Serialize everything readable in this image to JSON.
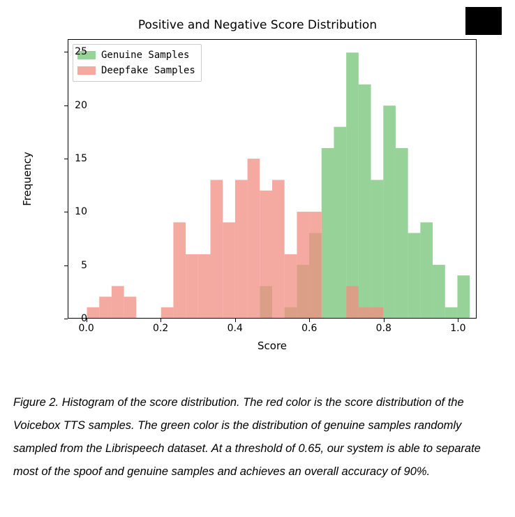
{
  "chart": {
    "type": "histogram",
    "title": "Positive and Negative Score Distribution",
    "xlabel": "Score",
    "ylabel": "Frequency",
    "xlim": [
      -0.05,
      1.05
    ],
    "ylim": [
      0,
      26.2
    ],
    "ytick_step": 5,
    "xtick_step": 0.2,
    "background_color": "#ffffff",
    "title_fontsize": 17,
    "label_fontsize": 15,
    "tick_fontsize": 14,
    "bin_width": 0.033333,
    "x_start": 0.0,
    "series": [
      {
        "name": "Genuine Samples",
        "color": "#74c476",
        "opacity": 0.75,
        "values": [
          0,
          0,
          0,
          0,
          0,
          0,
          0,
          0,
          0,
          0,
          0,
          0,
          0,
          0,
          3,
          0,
          1,
          5,
          8,
          16,
          18,
          25,
          22,
          13,
          20,
          16,
          8,
          9,
          5,
          1,
          4
        ]
      },
      {
        "name": "Deepfake Samples",
        "color": "#f28e82",
        "opacity": 0.75,
        "values": [
          1,
          2,
          3,
          2,
          0,
          0,
          1,
          9,
          6,
          6,
          13,
          9,
          13,
          15,
          12,
          13,
          6,
          10,
          10,
          0,
          0,
          3,
          1,
          1,
          0,
          0,
          0,
          0,
          0,
          0,
          0
        ]
      }
    ],
    "y_ticks": [
      0,
      5,
      10,
      15,
      20,
      25
    ],
    "x_ticks": [
      0.0,
      0.2,
      0.4,
      0.6,
      0.8,
      1.0
    ],
    "x_tick_labels": [
      "0.0",
      "0.2",
      "0.4",
      "0.6",
      "0.8",
      "1.0"
    ]
  },
  "caption": "Figure 2. Histogram of the score distribution. The red color is the score distribution of the Voicebox TTS samples. The green color is the distribution of genuine samples randomly sampled from the Librispeech dataset. At a threshold of 0.65, our system is able to separate most of the spoof and genuine samples and achieves an overall accuracy of 90%."
}
